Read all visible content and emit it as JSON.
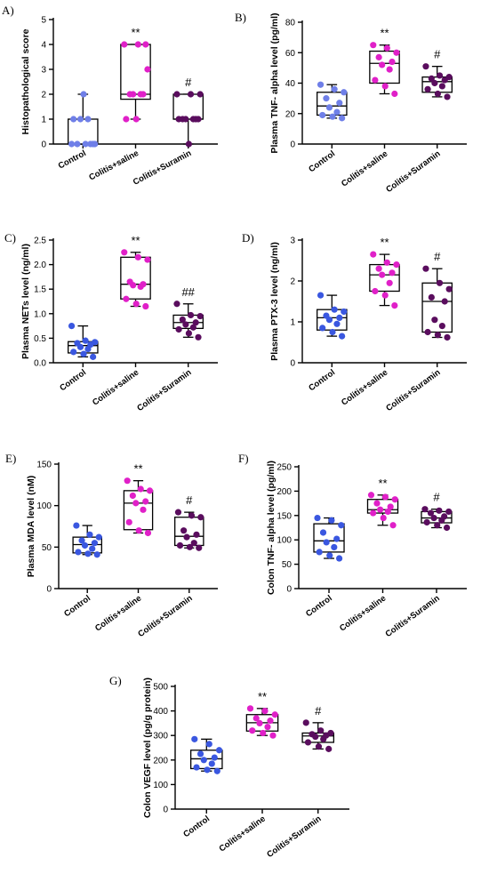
{
  "colors": {
    "Control": "#3a57e0",
    "Colitis+saline": "#e020c8",
    "Colitis+Suramin": "#5a0d5e",
    "Control_A_B": "#6f7fe8"
  },
  "chart_data": [
    {
      "id": "A",
      "panel_label": "A)",
      "type": "box",
      "ylabel": "Histopathological score",
      "ylim": [
        0,
        5
      ],
      "yticks": [
        0,
        1,
        2,
        3,
        4,
        5
      ],
      "categories": [
        "Control",
        "Colitis+saline",
        "Colitis+Suramin"
      ],
      "series": [
        {
          "q1": 0,
          "median": 0,
          "q3": 1,
          "min": 0,
          "max": 2,
          "points": [
            0,
            0,
            0,
            0,
            0,
            1,
            1,
            1,
            2,
            0
          ],
          "sig": ""
        },
        {
          "q1": 1.8,
          "median": 2,
          "q3": 4,
          "min": 1,
          "max": 4,
          "points": [
            4,
            4,
            3,
            2,
            2,
            2,
            2,
            1,
            1,
            4
          ],
          "sig": "**"
        },
        {
          "q1": 1,
          "median": 1,
          "q3": 2,
          "min": 0,
          "max": 2,
          "points": [
            2,
            2,
            2,
            1,
            1,
            1,
            1,
            1,
            0,
            1
          ],
          "sig": "#"
        }
      ]
    },
    {
      "id": "B",
      "panel_label": "B)",
      "type": "box",
      "ylabel": "Plasma TNF- alpha level (pg/ml)",
      "ylim": [
        0,
        80
      ],
      "yticks": [
        0,
        20,
        40,
        60,
        80
      ],
      "categories": [
        "Control",
        "Colitis+saline",
        "Colitis+Suramin"
      ],
      "series": [
        {
          "q1": 19,
          "median": 25,
          "q3": 34,
          "min": 17,
          "max": 39,
          "points": [
            39,
            36,
            34,
            30,
            27,
            24,
            21,
            19,
            18,
            17
          ],
          "sig": ""
        },
        {
          "q1": 40,
          "median": 53,
          "q3": 61,
          "min": 33,
          "max": 65,
          "points": [
            65,
            63,
            60,
            57,
            54,
            52,
            49,
            42,
            38,
            33
          ],
          "sig": "**"
        },
        {
          "q1": 34,
          "median": 41,
          "q3": 44,
          "min": 31,
          "max": 51,
          "points": [
            51,
            45,
            44,
            43,
            42,
            40,
            38,
            36,
            33,
            31
          ],
          "sig": "#"
        }
      ]
    },
    {
      "id": "C",
      "panel_label": "C)",
      "type": "box",
      "ylabel": "Plasma NETs level (ng/ml)",
      "ylim": [
        0,
        2.5
      ],
      "yticks": [
        0.0,
        0.5,
        1.0,
        1.5,
        2.0,
        2.5
      ],
      "categories": [
        "Control",
        "Colitis+saline",
        "Colitis+Suramin"
      ],
      "series": [
        {
          "q1": 0.2,
          "median": 0.35,
          "q3": 0.43,
          "min": 0.12,
          "max": 0.75,
          "points": [
            0.75,
            0.45,
            0.42,
            0.4,
            0.37,
            0.32,
            0.28,
            0.22,
            0.18,
            0.12
          ],
          "sig": ""
        },
        {
          "q1": 1.3,
          "median": 1.6,
          "q3": 2.15,
          "min": 1.15,
          "max": 2.25,
          "points": [
            2.25,
            2.15,
            2.1,
            1.65,
            1.6,
            1.58,
            1.55,
            1.3,
            1.2,
            1.15
          ],
          "sig": "**"
        },
        {
          "q1": 0.7,
          "median": 0.82,
          "q3": 0.97,
          "min": 0.52,
          "max": 1.2,
          "points": [
            1.2,
            0.97,
            0.95,
            0.88,
            0.82,
            0.78,
            0.72,
            0.68,
            0.6,
            0.52
          ],
          "sig": "##"
        }
      ]
    },
    {
      "id": "D",
      "panel_label": "D)",
      "type": "box",
      "ylabel": "Plasma PTX-3 level (ng/ml)",
      "ylim": [
        0,
        3
      ],
      "yticks": [
        0,
        1,
        2,
        3
      ],
      "categories": [
        "Control",
        "Colitis+saline",
        "Colitis+Suramin"
      ],
      "series": [
        {
          "q1": 0.8,
          "median": 1.1,
          "q3": 1.3,
          "min": 0.65,
          "max": 1.65,
          "points": [
            1.65,
            1.3,
            1.25,
            1.15,
            1.1,
            1.05,
            0.95,
            0.85,
            0.75,
            0.65
          ],
          "sig": ""
        },
        {
          "q1": 1.75,
          "median": 2.15,
          "q3": 2.4,
          "min": 1.4,
          "max": 2.65,
          "points": [
            2.65,
            2.45,
            2.4,
            2.3,
            2.2,
            2.15,
            1.95,
            1.75,
            1.65,
            1.4
          ],
          "sig": "**"
        },
        {
          "q1": 0.75,
          "median": 1.5,
          "q3": 1.95,
          "min": 0.62,
          "max": 2.3,
          "points": [
            2.3,
            1.95,
            1.8,
            1.6,
            1.5,
            1.05,
            0.9,
            0.75,
            0.68,
            0.62
          ],
          "sig": "#"
        }
      ]
    },
    {
      "id": "E",
      "panel_label": "E)",
      "type": "box",
      "ylabel": "Plasma MDA level (nM)",
      "ylim": [
        0,
        150
      ],
      "yticks": [
        0,
        50,
        100,
        150
      ],
      "categories": [
        "Control",
        "Colitis+saline",
        "Colitis+Suramin"
      ],
      "series": [
        {
          "q1": 43,
          "median": 53,
          "q3": 62,
          "min": 41,
          "max": 76,
          "points": [
            76,
            65,
            62,
            58,
            55,
            52,
            48,
            44,
            42,
            41
          ],
          "sig": ""
        },
        {
          "q1": 71,
          "median": 103,
          "q3": 118,
          "min": 67,
          "max": 130,
          "points": [
            130,
            120,
            118,
            112,
            105,
            103,
            95,
            80,
            70,
            67
          ],
          "sig": "**"
        },
        {
          "q1": 52,
          "median": 63,
          "q3": 86,
          "min": 49,
          "max": 92,
          "points": [
            92,
            88,
            86,
            70,
            65,
            62,
            55,
            52,
            50,
            49
          ],
          "sig": "#"
        }
      ]
    },
    {
      "id": "F",
      "panel_label": "F)",
      "type": "box",
      "ylabel": "Colon TNF- alpha level (pg/ml)",
      "ylim": [
        0,
        250
      ],
      "yticks": [
        0,
        50,
        100,
        150,
        200,
        250
      ],
      "categories": [
        "Control",
        "Colitis+saline",
        "Colitis+Suramin"
      ],
      "series": [
        {
          "q1": 75,
          "median": 98,
          "q3": 133,
          "min": 62,
          "max": 145,
          "points": [
            145,
            140,
            130,
            115,
            102,
            95,
            85,
            75,
            68,
            62
          ],
          "sig": ""
        },
        {
          "q1": 155,
          "median": 162,
          "q3": 183,
          "min": 130,
          "max": 192,
          "points": [
            192,
            188,
            183,
            175,
            168,
            162,
            158,
            155,
            145,
            130
          ],
          "sig": "**"
        },
        {
          "q1": 135,
          "median": 145,
          "q3": 158,
          "min": 125,
          "max": 163,
          "points": [
            163,
            160,
            158,
            155,
            148,
            145,
            140,
            136,
            130,
            125
          ],
          "sig": "#"
        }
      ]
    },
    {
      "id": "G",
      "panel_label": "G)",
      "type": "box",
      "ylabel": "Colon VEGF level (pg/g protein)",
      "ylim": [
        0,
        500
      ],
      "yticks": [
        0,
        100,
        200,
        300,
        400,
        500
      ],
      "categories": [
        "Control",
        "Colitis+saline",
        "Colitis+Suramin"
      ],
      "series": [
        {
          "q1": 165,
          "median": 205,
          "q3": 240,
          "min": 155,
          "max": 285,
          "points": [
            285,
            265,
            240,
            225,
            210,
            200,
            185,
            170,
            160,
            155
          ],
          "sig": ""
        },
        {
          "q1": 318,
          "median": 352,
          "q3": 385,
          "min": 300,
          "max": 410,
          "points": [
            410,
            400,
            385,
            370,
            360,
            350,
            335,
            320,
            310,
            300
          ],
          "sig": "**"
        },
        {
          "q1": 272,
          "median": 298,
          "q3": 310,
          "min": 245,
          "max": 352,
          "points": [
            352,
            320,
            310,
            305,
            300,
            295,
            285,
            272,
            255,
            245
          ],
          "sig": "#"
        }
      ]
    }
  ]
}
